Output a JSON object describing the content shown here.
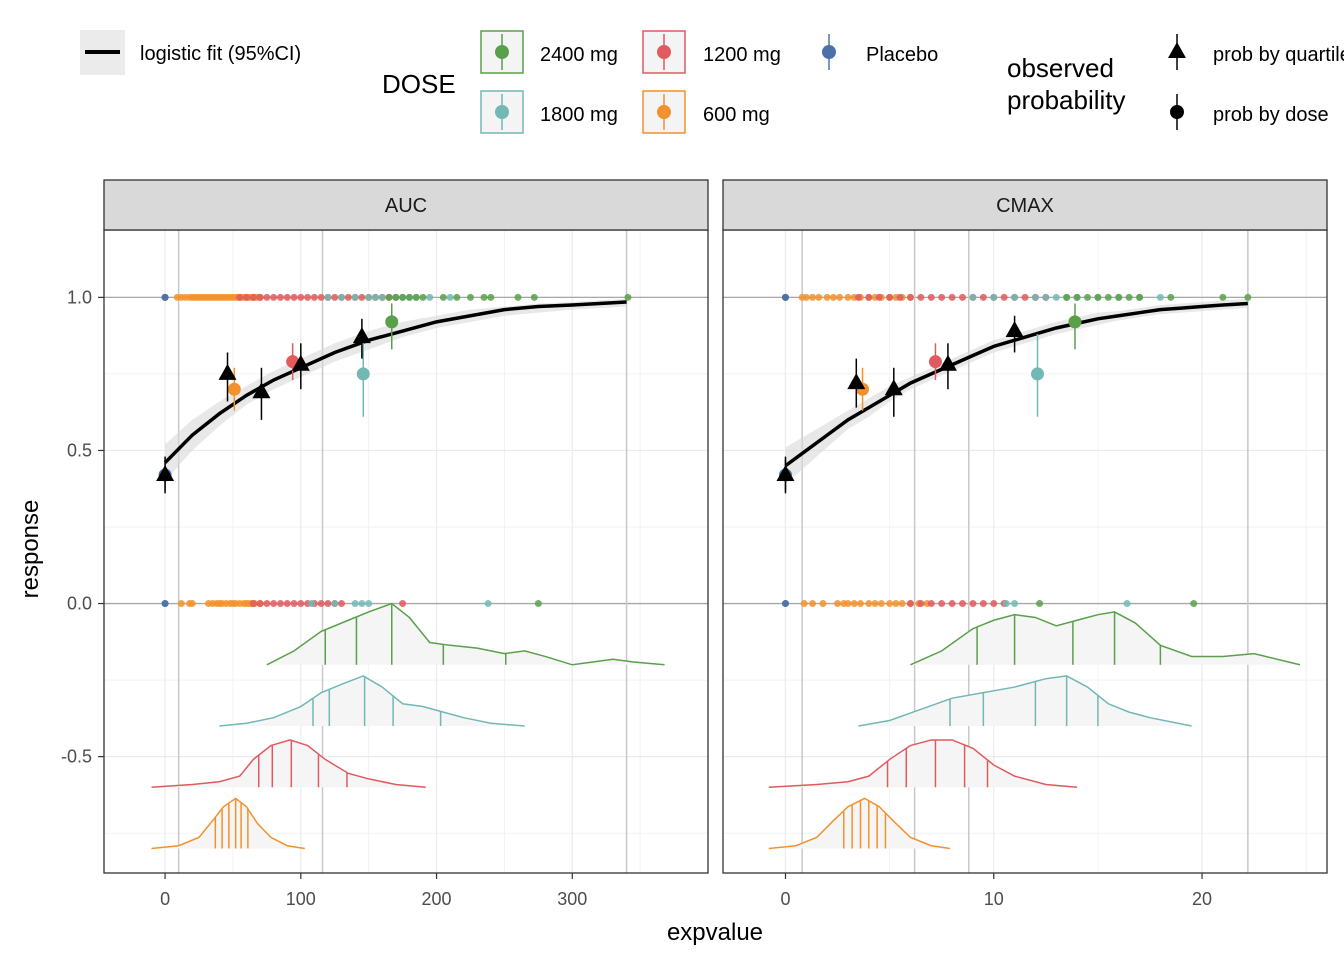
{
  "legend": {
    "fit_label": "logistic fit (95%CI)",
    "dose_title": "DOSE",
    "dose_items": [
      {
        "label": "2400 mg",
        "color": "#5AA04A"
      },
      {
        "label": "1200 mg",
        "color": "#E05A5E"
      },
      {
        "label": "Placebo",
        "color": "#4B72A8"
      },
      {
        "label": "1800 mg",
        "color": "#72B8B4"
      },
      {
        "label": "600 mg",
        "color": "#F2922E"
      }
    ],
    "obs_title_line1": "observed",
    "obs_title_line2": "probability",
    "obs_items": [
      {
        "label": "prob by quartile",
        "shape": "triangle"
      },
      {
        "label": "prob by dose",
        "shape": "circle"
      }
    ]
  },
  "axis": {
    "xlabel": "expvalue",
    "ylabel": "response",
    "y_ticks": [
      1.0,
      0.5,
      0.0,
      -0.5
    ],
    "y_tick_labels": [
      "1.0",
      "0.5",
      "0.0",
      "-0.5"
    ],
    "ylim": [
      -0.88,
      1.22
    ]
  },
  "chart_data": [
    {
      "type": "scatter",
      "panel": "AUC",
      "xlim": [
        -45,
        400
      ],
      "x_ticks": [
        0,
        100,
        200,
        300
      ],
      "x_tick_labels": [
        "0",
        "100",
        "200",
        "300"
      ],
      "quartile_lines": [
        10,
        116,
        340
      ],
      "logistic_fit": {
        "x": [
          0,
          20,
          40,
          60,
          80,
          100,
          125,
          150,
          175,
          200,
          225,
          250,
          275,
          300,
          320,
          340
        ],
        "y": [
          0.46,
          0.55,
          0.62,
          0.68,
          0.73,
          0.77,
          0.82,
          0.86,
          0.89,
          0.92,
          0.94,
          0.96,
          0.97,
          0.975,
          0.98,
          0.985
        ],
        "lo": [
          0.4,
          0.5,
          0.58,
          0.65,
          0.7,
          0.74,
          0.79,
          0.83,
          0.87,
          0.9,
          0.92,
          0.94,
          0.95,
          0.96,
          0.965,
          0.97
        ],
        "hi": [
          0.52,
          0.6,
          0.66,
          0.71,
          0.76,
          0.8,
          0.85,
          0.89,
          0.92,
          0.94,
          0.96,
          0.97,
          0.98,
          0.985,
          0.99,
          0.995
        ]
      },
      "prob_by_quartile": [
        {
          "x": 0,
          "y": 0.42,
          "lo": 0.36,
          "hi": 0.48
        },
        {
          "x": 46,
          "y": 0.75,
          "lo": 0.66,
          "hi": 0.82
        },
        {
          "x": 71,
          "y": 0.69,
          "lo": 0.6,
          "hi": 0.77
        },
        {
          "x": 100,
          "y": 0.78,
          "lo": 0.7,
          "hi": 0.85
        },
        {
          "x": 145,
          "y": 0.87,
          "lo": 0.8,
          "hi": 0.93
        }
      ],
      "prob_by_dose": [
        {
          "dose": "Placebo",
          "x": 0,
          "y": 0.42,
          "lo": 0.37,
          "hi": 0.47
        },
        {
          "dose": "600 mg",
          "x": 51,
          "y": 0.7,
          "lo": 0.63,
          "hi": 0.77
        },
        {
          "dose": "1200 mg",
          "x": 94,
          "y": 0.79,
          "lo": 0.73,
          "hi": 0.85
        },
        {
          "dose": "1800 mg",
          "x": 146,
          "y": 0.75,
          "lo": 0.61,
          "hi": 0.88
        },
        {
          "dose": "2400 mg",
          "x": 167,
          "y": 0.92,
          "lo": 0.83,
          "hi": 0.98
        }
      ],
      "rug_responders": [
        {
          "dose": "Placebo",
          "values": [
            0,
            0,
            0
          ]
        },
        {
          "dose": "600 mg",
          "values": [
            9,
            12,
            15,
            18,
            20,
            22,
            24,
            26,
            28,
            30,
            32,
            34,
            36,
            38,
            40,
            42,
            44,
            46,
            48,
            50,
            52,
            54,
            56,
            58,
            60,
            62,
            64,
            66,
            68,
            70
          ]
        },
        {
          "dose": "1200 mg",
          "values": [
            55,
            60,
            65,
            70,
            75,
            80,
            85,
            90,
            95,
            100,
            105,
            110,
            115,
            120,
            125,
            130,
            135,
            140,
            145,
            150,
            155,
            160,
            165,
            170
          ]
        },
        {
          "dose": "1800 mg",
          "values": [
            120,
            130,
            140,
            150,
            155,
            160,
            170,
            175,
            180,
            185,
            195,
            210
          ]
        },
        {
          "dose": "2400 mg",
          "values": [
            165,
            170,
            175,
            180,
            185,
            190,
            205,
            215,
            225,
            235,
            240,
            260,
            272,
            341
          ]
        }
      ],
      "rug_nonresponders": [
        {
          "dose": "Placebo",
          "values": [
            0,
            0
          ]
        },
        {
          "dose": "600 mg",
          "values": [
            12,
            18,
            20,
            32,
            35,
            38,
            40,
            42,
            45,
            48,
            50,
            52,
            55,
            58,
            60,
            62,
            64,
            66,
            70
          ]
        },
        {
          "dose": "1200 mg",
          "values": [
            65,
            70,
            75,
            80,
            85,
            90,
            95,
            100,
            105,
            110,
            115,
            120,
            125,
            130,
            175
          ]
        },
        {
          "dose": "1800 mg",
          "values": [
            108,
            125,
            140,
            145,
            150,
            238
          ]
        },
        {
          "dose": "2400 mg",
          "values": [
            275
          ]
        }
      ],
      "densities": [
        {
          "dose": "2400 mg",
          "baseline": -0.2,
          "x": [
            75,
            95,
            115,
            135,
            150,
            167,
            180,
            195,
            210,
            230,
            250,
            265,
            280,
            300,
            315,
            330,
            345,
            368
          ],
          "y": [
            0.0,
            0.05,
            0.12,
            0.16,
            0.19,
            0.22,
            0.17,
            0.08,
            0.07,
            0.06,
            0.04,
            0.05,
            0.03,
            0.0,
            0.01,
            0.02,
            0.01,
            0.0
          ],
          "vlines": [
            118,
            141,
            167,
            205,
            251
          ]
        },
        {
          "dose": "1800 mg",
          "baseline": -0.4,
          "x": [
            40,
            60,
            80,
            100,
            115,
            130,
            146,
            160,
            175,
            190,
            205,
            220,
            240,
            265
          ],
          "y": [
            0.0,
            0.01,
            0.03,
            0.07,
            0.12,
            0.15,
            0.18,
            0.14,
            0.08,
            0.07,
            0.05,
            0.03,
            0.01,
            0.0
          ],
          "vlines": [
            109,
            121,
            147,
            168,
            203
          ]
        },
        {
          "dose": "1200 mg",
          "baseline": -0.6,
          "x": [
            -10,
            20,
            40,
            55,
            65,
            78,
            92,
            105,
            118,
            135,
            150,
            170,
            192
          ],
          "y": [
            0.0,
            0.01,
            0.02,
            0.04,
            0.1,
            0.15,
            0.17,
            0.15,
            0.1,
            0.05,
            0.03,
            0.01,
            0.0
          ],
          "vlines": [
            69,
            79,
            93,
            113,
            134
          ]
        },
        {
          "dose": "600 mg",
          "baseline": -0.8,
          "x": [
            -10,
            10,
            25,
            35,
            43,
            52,
            60,
            68,
            78,
            90,
            103
          ],
          "y": [
            0.0,
            0.01,
            0.04,
            0.1,
            0.15,
            0.18,
            0.15,
            0.09,
            0.04,
            0.01,
            0.0
          ],
          "vlines": [
            37,
            42,
            47,
            52,
            56,
            61
          ]
        }
      ]
    },
    {
      "type": "scatter",
      "panel": "CMAX",
      "xlim": [
        -3,
        26
      ],
      "x_ticks": [
        0,
        10,
        20
      ],
      "x_tick_labels": [
        "0",
        "10",
        "20"
      ],
      "quartile_lines": [
        0.8,
        6.2,
        8.8,
        22.2
      ],
      "logistic_fit": {
        "x": [
          0,
          1,
          2,
          3,
          4,
          5,
          6,
          7,
          8,
          9,
          10,
          11,
          12,
          13,
          14,
          15,
          16,
          17,
          18,
          19,
          20,
          21,
          22.2
        ],
        "y": [
          0.45,
          0.5,
          0.55,
          0.6,
          0.64,
          0.68,
          0.72,
          0.75,
          0.78,
          0.81,
          0.84,
          0.86,
          0.88,
          0.9,
          0.915,
          0.93,
          0.94,
          0.95,
          0.96,
          0.965,
          0.97,
          0.975,
          0.98
        ],
        "lo": [
          0.39,
          0.45,
          0.51,
          0.57,
          0.61,
          0.66,
          0.7,
          0.73,
          0.76,
          0.79,
          0.82,
          0.84,
          0.86,
          0.88,
          0.895,
          0.91,
          0.925,
          0.935,
          0.945,
          0.95,
          0.955,
          0.96,
          0.965
        ],
        "hi": [
          0.51,
          0.55,
          0.59,
          0.63,
          0.67,
          0.71,
          0.74,
          0.77,
          0.8,
          0.83,
          0.86,
          0.88,
          0.9,
          0.92,
          0.935,
          0.95,
          0.955,
          0.965,
          0.975,
          0.98,
          0.985,
          0.99,
          0.995
        ]
      },
      "prob_by_quartile": [
        {
          "x": 0,
          "y": 0.42,
          "lo": 0.36,
          "hi": 0.48
        },
        {
          "x": 3.4,
          "y": 0.72,
          "lo": 0.64,
          "hi": 0.8
        },
        {
          "x": 5.2,
          "y": 0.7,
          "lo": 0.61,
          "hi": 0.77
        },
        {
          "x": 7.8,
          "y": 0.78,
          "lo": 0.7,
          "hi": 0.85
        },
        {
          "x": 11.0,
          "y": 0.89,
          "lo": 0.82,
          "hi": 0.94
        }
      ],
      "prob_by_dose": [
        {
          "dose": "Placebo",
          "x": 0,
          "y": 0.42,
          "lo": 0.37,
          "hi": 0.47
        },
        {
          "dose": "600 mg",
          "x": 3.7,
          "y": 0.7,
          "lo": 0.63,
          "hi": 0.77
        },
        {
          "dose": "1200 mg",
          "x": 7.2,
          "y": 0.79,
          "lo": 0.73,
          "hi": 0.85
        },
        {
          "dose": "1800 mg",
          "x": 12.1,
          "y": 0.75,
          "lo": 0.61,
          "hi": 0.88
        },
        {
          "dose": "2400 mg",
          "x": 13.9,
          "y": 0.92,
          "lo": 0.83,
          "hi": 0.98
        }
      ],
      "rug_responders": [
        {
          "dose": "Placebo",
          "values": [
            0,
            0,
            0
          ]
        },
        {
          "dose": "600 mg",
          "values": [
            0.8,
            1.0,
            1.3,
            1.6,
            2.0,
            2.3,
            2.6,
            3.0,
            3.3,
            3.6,
            4.0,
            4.3,
            4.6,
            5.0,
            5.3,
            5.6,
            6.0
          ]
        },
        {
          "dose": "1200 mg",
          "values": [
            3.5,
            4.0,
            4.5,
            5.0,
            5.5,
            6.0,
            6.5,
            7.0,
            7.5,
            8.0,
            8.5,
            9.0,
            9.5,
            10.0,
            10.5,
            11.0,
            11.5,
            12.0,
            12.5
          ]
        },
        {
          "dose": "1800 mg",
          "values": [
            9.0,
            10.0,
            11.0,
            12.0,
            12.5,
            13.0,
            13.5,
            14.0,
            15.0,
            16.0,
            17.0,
            18.0
          ]
        },
        {
          "dose": "2400 mg",
          "values": [
            13.5,
            14.0,
            14.5,
            15.0,
            15.5,
            16.0,
            16.5,
            17.0,
            18.5,
            21.0,
            22.2
          ]
        }
      ],
      "rug_nonresponders": [
        {
          "dose": "Placebo",
          "values": [
            0,
            0
          ]
        },
        {
          "dose": "600 mg",
          "values": [
            0.9,
            1.3,
            1.8,
            2.5,
            2.8,
            3.0,
            3.3,
            3.6,
            4.0,
            4.3,
            4.6,
            5.0,
            5.3,
            5.6,
            6.0,
            6.4,
            6.8
          ]
        },
        {
          "dose": "1200 mg",
          "values": [
            6.0,
            6.5,
            7.0,
            7.5,
            8.0,
            8.5,
            9.0,
            9.5,
            10.0,
            10.5
          ]
        },
        {
          "dose": "1800 mg",
          "values": [
            10.6,
            11.0,
            16.4
          ]
        },
        {
          "dose": "2400 mg",
          "values": [
            12.2,
            19.6
          ]
        }
      ],
      "densities": [
        {
          "dose": "2400 mg",
          "baseline": -0.2,
          "x": [
            6,
            7.5,
            9,
            10,
            11,
            12,
            13,
            14,
            15,
            15.8,
            16.8,
            18,
            19.5,
            21,
            22.5,
            24.7
          ],
          "y": [
            0.0,
            0.05,
            0.13,
            0.16,
            0.18,
            0.17,
            0.14,
            0.16,
            0.18,
            0.19,
            0.15,
            0.07,
            0.03,
            0.03,
            0.04,
            0.0
          ],
          "vlines": [
            9.2,
            11.0,
            13.8,
            15.8,
            18.0
          ]
        },
        {
          "dose": "1800 mg",
          "baseline": -0.4,
          "x": [
            3.5,
            5,
            6.5,
            8,
            9.5,
            11,
            12.5,
            13.5,
            14.5,
            15.5,
            16.5,
            17.5,
            19.5
          ],
          "y": [
            0.0,
            0.02,
            0.06,
            0.1,
            0.12,
            0.14,
            0.17,
            0.18,
            0.14,
            0.08,
            0.05,
            0.03,
            0.0
          ],
          "vlines": [
            7.9,
            9.5,
            12.0,
            13.5,
            15.0
          ]
        },
        {
          "dose": "1200 mg",
          "baseline": -0.6,
          "x": [
            -0.8,
            1.5,
            3,
            4,
            5,
            6,
            7,
            8,
            9,
            10,
            11,
            12.5,
            14
          ],
          "y": [
            0.0,
            0.01,
            0.02,
            0.04,
            0.1,
            0.15,
            0.17,
            0.17,
            0.14,
            0.08,
            0.04,
            0.01,
            0.0
          ],
          "vlines": [
            4.9,
            5.8,
            7.2,
            8.6,
            9.7
          ]
        },
        {
          "dose": "600 mg",
          "baseline": -0.8,
          "x": [
            -0.8,
            0.5,
            1.5,
            2.3,
            3,
            3.8,
            4.5,
            5.3,
            6,
            7,
            7.9
          ],
          "y": [
            0.0,
            0.01,
            0.04,
            0.1,
            0.15,
            0.18,
            0.15,
            0.09,
            0.04,
            0.01,
            0.0
          ],
          "vlines": [
            2.8,
            3.2,
            3.6,
            4.0,
            4.4,
            4.8
          ]
        }
      ]
    }
  ]
}
